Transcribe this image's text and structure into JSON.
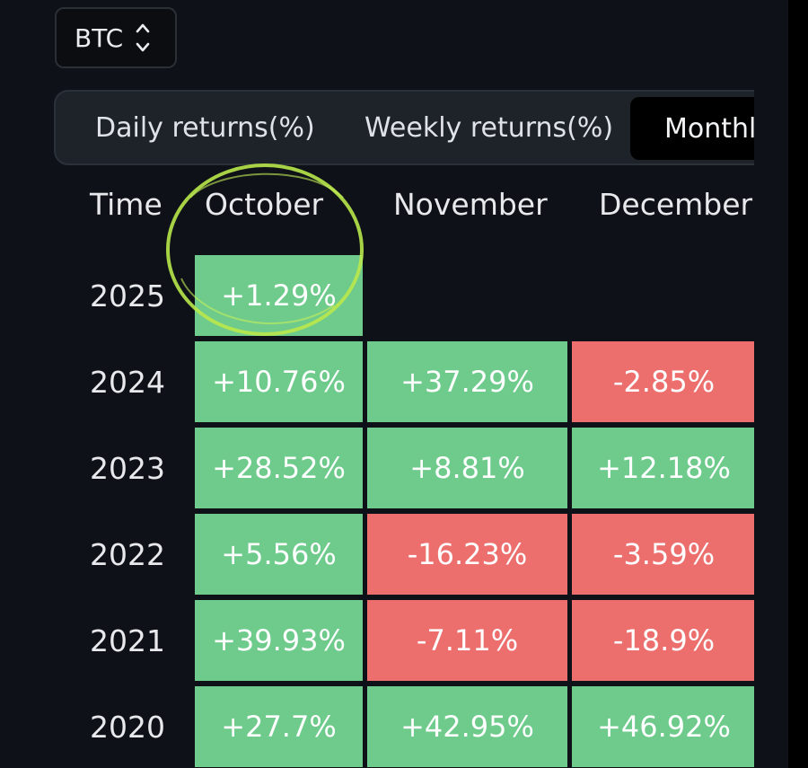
{
  "asset_selector": {
    "value": "BTC",
    "icon": "chevron-up-down-icon"
  },
  "tabs": [
    {
      "label": "Daily returns(%)",
      "active": false
    },
    {
      "label": "Weekly returns(%)",
      "active": false
    },
    {
      "label": "Monthly returns(%)",
      "visible_label": "Monthly",
      "active": true
    }
  ],
  "table": {
    "time_header": "Time",
    "columns": [
      "October",
      "November",
      "December"
    ],
    "rows": [
      {
        "year": "2025",
        "values": [
          "+1.29%",
          "",
          ""
        ]
      },
      {
        "year": "2024",
        "values": [
          "+10.76%",
          "+37.29%",
          "-2.85%"
        ]
      },
      {
        "year": "2023",
        "values": [
          "+28.52%",
          "+8.81%",
          "+12.18%"
        ]
      },
      {
        "year": "2022",
        "values": [
          "+5.56%",
          "-16.23%",
          "-3.59%"
        ]
      },
      {
        "year": "2021",
        "values": [
          "+39.93%",
          "-7.11%",
          "-18.9%"
        ]
      },
      {
        "year": "2020",
        "values": [
          "+27.7%",
          "+42.95%",
          "+46.92%"
        ]
      }
    ]
  },
  "colors": {
    "positive": "#6ecb8c",
    "negative": "#ec6f6e",
    "highlight_circle": "#b9e84a"
  }
}
